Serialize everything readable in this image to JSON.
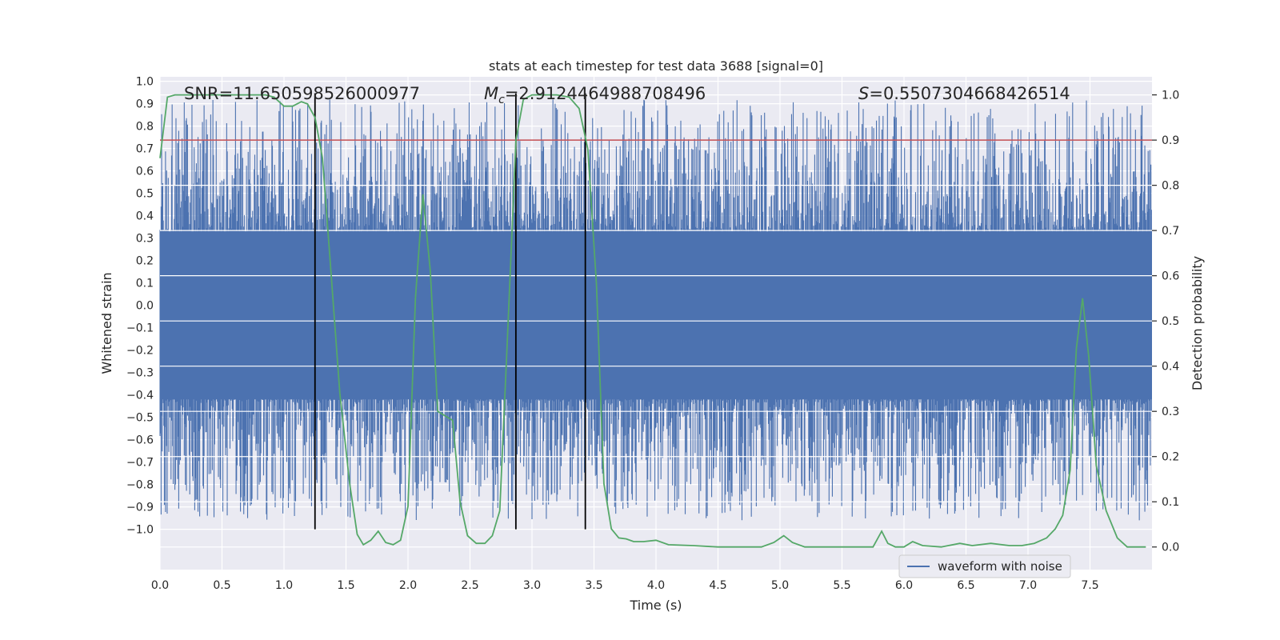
{
  "chart_data": {
    "type": "line",
    "title": "stats at each timestep for test data 3688 [signal=0]",
    "xlabel": "Time (s)",
    "ylabel": "Whitened strain",
    "ylabel_right": "Detection probability",
    "xlim": [
      0.0,
      8.0
    ],
    "ylim": [
      -1.18,
      1.02
    ],
    "ylim_right": [
      -0.05,
      1.04
    ],
    "xticks": [
      0.0,
      0.5,
      1.0,
      1.5,
      2.0,
      2.5,
      3.0,
      3.5,
      4.0,
      4.5,
      5.0,
      5.5,
      6.0,
      6.5,
      7.0,
      7.5
    ],
    "yticks": [
      -1.0,
      -0.9,
      -0.8,
      -0.7,
      -0.6,
      -0.5,
      -0.4,
      -0.3,
      -0.2,
      -0.1,
      0.0,
      0.1,
      0.2,
      0.3,
      0.4,
      0.5,
      0.6,
      0.7,
      0.8,
      0.9,
      1.0
    ],
    "yticks_right": [
      0.0,
      0.1,
      0.2,
      0.3,
      0.4,
      0.5,
      0.6,
      0.7,
      0.8,
      0.9,
      1.0
    ],
    "grid": true,
    "legend_position": "lower-right",
    "threshold": {
      "axis": "right",
      "value": 0.9,
      "color": "#c44e52"
    },
    "vlines": [
      1.25,
      2.87,
      3.43
    ],
    "annotations": {
      "snr": "SNR=11.650598526000977",
      "mc_symbol": "M",
      "mc_sub": "c",
      "mc_value": "=2.9124464988708496",
      "s_symbol": "S",
      "s_value": "=0.5507304668426514"
    },
    "series": [
      {
        "name": "waveform with noise",
        "axis": "left",
        "color": "#4c72b0",
        "kind": "noise-band",
        "band": [
          -0.42,
          0.33
        ],
        "peak_amplitude": 0.92,
        "min_amplitude": -0.96,
        "samples": 1800
      },
      {
        "name": "detection probability",
        "axis": "right",
        "color": "#55a868",
        "x": [
          0.0,
          0.06,
          0.12,
          0.2,
          0.3,
          0.5,
          0.7,
          0.85,
          0.92,
          1.0,
          1.07,
          1.14,
          1.19,
          1.25,
          1.31,
          1.37,
          1.45,
          1.53,
          1.59,
          1.64,
          1.7,
          1.76,
          1.82,
          1.88,
          1.94,
          2.0,
          2.06,
          2.12,
          2.18,
          2.24,
          2.3,
          2.36,
          2.42,
          2.48,
          2.55,
          2.62,
          2.68,
          2.74,
          2.8,
          2.87,
          2.93,
          3.0,
          3.1,
          3.2,
          3.3,
          3.38,
          3.45,
          3.52,
          3.58,
          3.64,
          3.7,
          3.76,
          3.82,
          3.9,
          4.0,
          4.1,
          4.3,
          4.5,
          4.7,
          4.85,
          4.95,
          5.03,
          5.1,
          5.2,
          5.4,
          5.6,
          5.7,
          5.75,
          5.82,
          5.87,
          5.93,
          6.0,
          6.07,
          6.15,
          6.3,
          6.45,
          6.55,
          6.7,
          6.85,
          6.95,
          7.05,
          7.15,
          7.22,
          7.28,
          7.34,
          7.39,
          7.44,
          7.49,
          7.55,
          7.63,
          7.72,
          7.8,
          7.95
        ],
        "values": [
          0.86,
          0.995,
          1.0,
          1.0,
          1.0,
          1.0,
          1.0,
          1.0,
          0.995,
          0.975,
          0.975,
          0.985,
          0.98,
          0.95,
          0.86,
          0.64,
          0.34,
          0.14,
          0.028,
          0.005,
          0.015,
          0.035,
          0.01,
          0.005,
          0.015,
          0.09,
          0.55,
          0.78,
          0.61,
          0.3,
          0.29,
          0.28,
          0.1,
          0.025,
          0.008,
          0.008,
          0.025,
          0.08,
          0.45,
          0.9,
          0.99,
          1.0,
          1.0,
          1.0,
          0.995,
          0.97,
          0.88,
          0.58,
          0.14,
          0.04,
          0.02,
          0.018,
          0.012,
          0.012,
          0.015,
          0.005,
          0.003,
          0.0,
          0.0,
          0.0,
          0.01,
          0.025,
          0.01,
          0.0,
          0.0,
          0.0,
          0.0,
          0.0,
          0.035,
          0.008,
          0.0,
          0.0,
          0.012,
          0.003,
          0.0,
          0.008,
          0.003,
          0.008,
          0.003,
          0.003,
          0.008,
          0.02,
          0.04,
          0.07,
          0.17,
          0.44,
          0.55,
          0.42,
          0.18,
          0.08,
          0.02,
          0.0,
          0.0
        ]
      }
    ]
  }
}
